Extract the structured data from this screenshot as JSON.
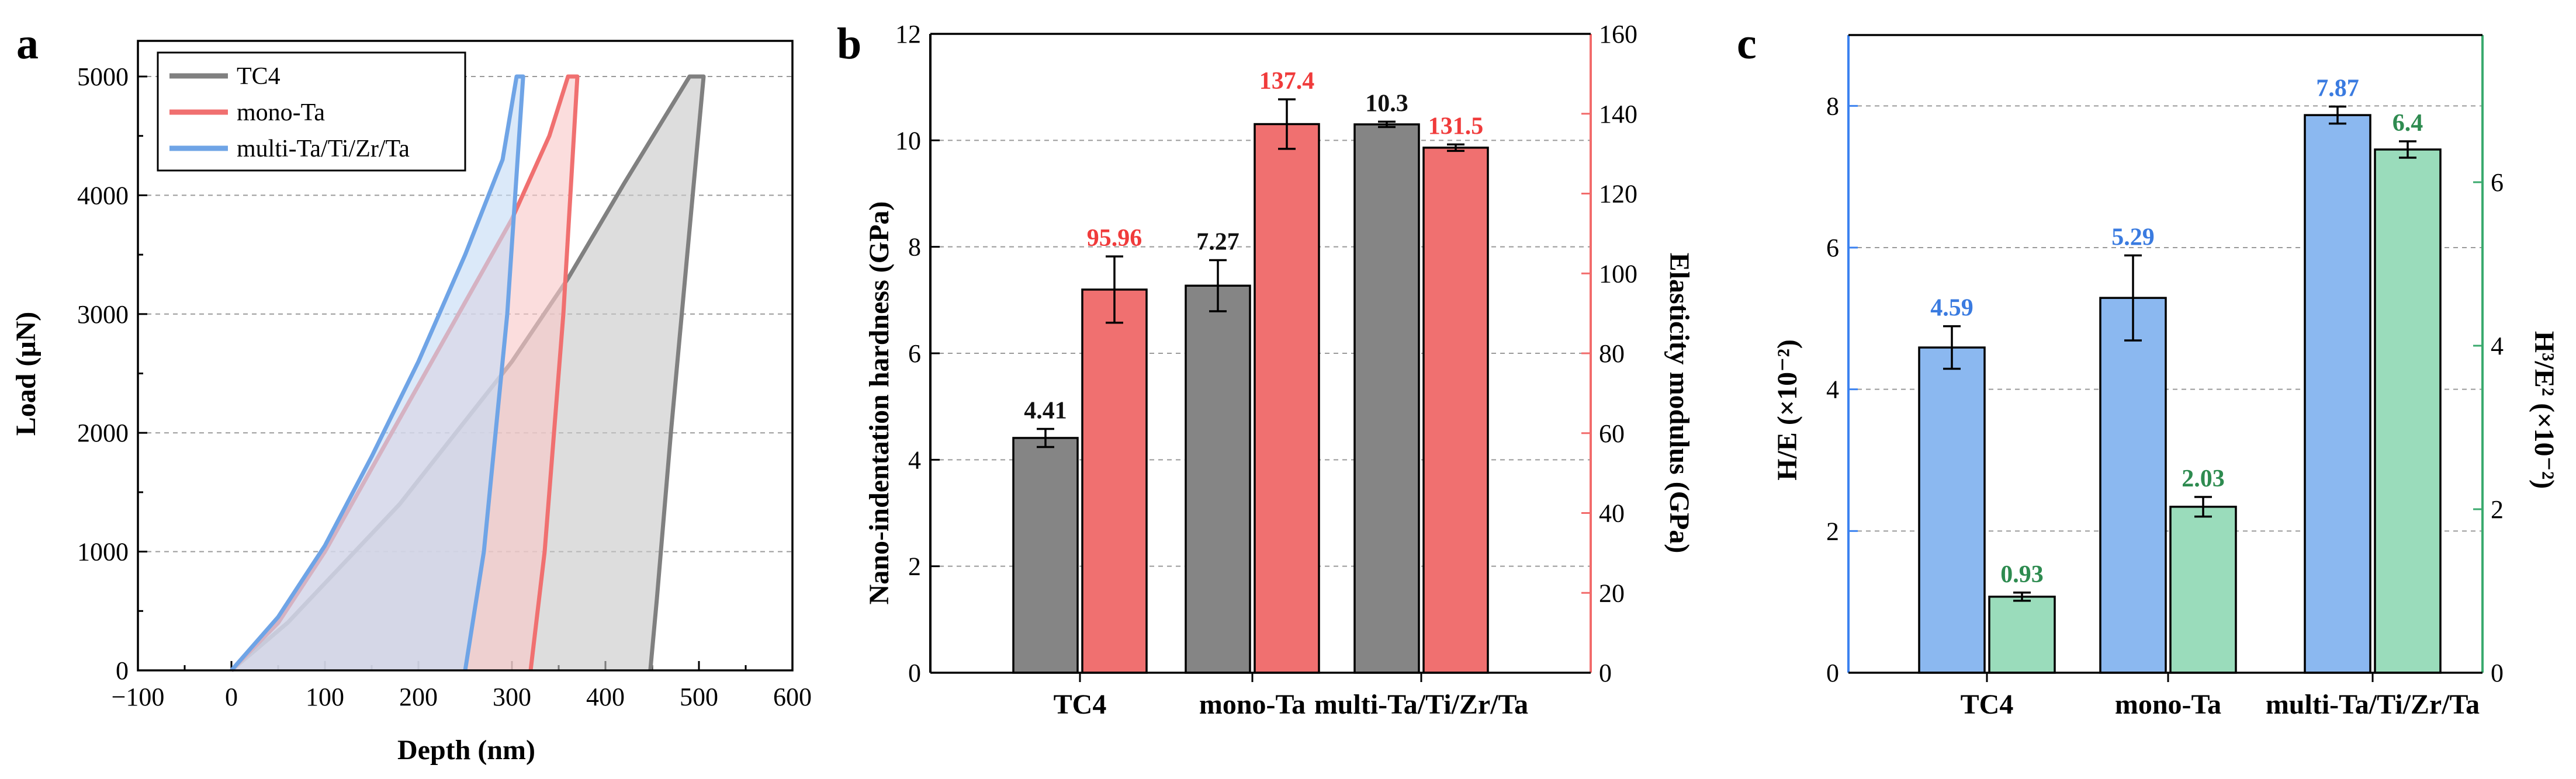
{
  "colors": {
    "tc4": "#808080",
    "mono_ta": "#f07070",
    "multi": "#6fa4e6",
    "bar_gray": "#858585",
    "bar_red": "#f07070",
    "bar_blue": "#8bb8f0",
    "bar_green": "#9adcbb",
    "red_axis": "#f26b6b",
    "blue_axis": "#3b82f0",
    "green_axis": "#3aaa6e",
    "label_red": "#f03b3b",
    "label_blue": "#3a7be0",
    "label_green": "#2e8b50"
  },
  "chart_data": [
    {
      "panel": "a",
      "type": "line",
      "xlabel": "Depth (nm)",
      "ylabel": "Load (μN)",
      "xlim": [
        -100,
        600
      ],
      "ylim": [
        0,
        5300
      ],
      "xticks": [
        "−100",
        "0",
        "100",
        "200",
        "300",
        "400",
        "500",
        "600"
      ],
      "yticks": [
        "0",
        "1000",
        "2000",
        "3000",
        "4000",
        "5000"
      ],
      "legend_location": "top-left",
      "series": [
        {
          "name": "TC4",
          "color_key": "tc4",
          "loading": [
            [
              0,
              0
            ],
            [
              60,
              400
            ],
            [
              120,
              900
            ],
            [
              180,
              1400
            ],
            [
              240,
              2000
            ],
            [
              300,
              2600
            ],
            [
              360,
              3300
            ],
            [
              420,
              4100
            ],
            [
              490,
              5000
            ]
          ],
          "hold": [
            [
              490,
              5000
            ],
            [
              505,
              5000
            ]
          ],
          "unloading": [
            [
              505,
              5000
            ],
            [
              470,
              2000
            ],
            [
              455,
              600
            ],
            [
              448,
              0
            ]
          ]
        },
        {
          "name": "mono-Ta",
          "color_key": "mono_ta",
          "loading": [
            [
              0,
              0
            ],
            [
              50,
              400
            ],
            [
              100,
              1000
            ],
            [
              150,
              1700
            ],
            [
              200,
              2400
            ],
            [
              250,
              3100
            ],
            [
              300,
              3800
            ],
            [
              340,
              4500
            ],
            [
              360,
              5000
            ]
          ],
          "hold": [
            [
              360,
              5000
            ],
            [
              370,
              5000
            ]
          ],
          "unloading": [
            [
              370,
              5000
            ],
            [
              355,
              3000
            ],
            [
              335,
              1000
            ],
            [
              320,
              0
            ]
          ]
        },
        {
          "name": "multi-Ta/Ti/Zr/Ta",
          "color_key": "multi",
          "loading": [
            [
              0,
              0
            ],
            [
              50,
              450
            ],
            [
              100,
              1050
            ],
            [
              150,
              1800
            ],
            [
              200,
              2600
            ],
            [
              250,
              3500
            ],
            [
              290,
              4300
            ],
            [
              305,
              5000
            ]
          ],
          "hold": [
            [
              305,
              5000
            ],
            [
              312,
              5000
            ]
          ],
          "unloading": [
            [
              312,
              5000
            ],
            [
              295,
              3000
            ],
            [
              270,
              1000
            ],
            [
              250,
              0
            ]
          ]
        }
      ]
    },
    {
      "panel": "b",
      "type": "bar",
      "categories": [
        "TC4",
        "mono-Ta",
        "multi-Ta/Ti/Zr/Ta"
      ],
      "ylabel": "Nano-indentation hardness (GPa)",
      "y2label": "Elasticity modulus (GPa)",
      "ylim": [
        0,
        12
      ],
      "y2lim": [
        0,
        160
      ],
      "yticks": [
        "0",
        "2",
        "4",
        "6",
        "8",
        "10",
        "12"
      ],
      "y2ticks": [
        "0",
        "20",
        "40",
        "60",
        "80",
        "100",
        "120",
        "140",
        "160"
      ],
      "series": [
        {
          "name": "Nano-indentation hardness",
          "axis": "left",
          "color_key": "bar_gray",
          "label_color_key": "tc4_label",
          "values": [
            4.41,
            7.27,
            10.3
          ],
          "errors": [
            0.17,
            0.48,
            0.05
          ],
          "labels": [
            "4.41",
            "7.27",
            "10.3"
          ]
        },
        {
          "name": "Elasticity modulus",
          "axis": "right",
          "color_key": "bar_red",
          "values": [
            95.96,
            137.4,
            131.5
          ],
          "errors": [
            8.3,
            6.2,
            0.8
          ],
          "labels": [
            "95.96",
            "137.4",
            "131.5"
          ]
        }
      ]
    },
    {
      "panel": "c",
      "type": "bar",
      "categories": [
        "TC4",
        "mono-Ta",
        "multi-Ta/Ti/Zr/Ta"
      ],
      "ylabel": "H/E (×10⁻²)",
      "y2label": "H³/E² (×10⁻²)",
      "ylim": [
        0,
        9
      ],
      "y2lim": [
        0,
        7.8
      ],
      "yticks": [
        "0",
        "2",
        "4",
        "6",
        "8"
      ],
      "y2ticks": [
        "0",
        "2",
        "4",
        "6"
      ],
      "series": [
        {
          "name": "H/E",
          "axis": "left",
          "color_key": "bar_blue",
          "values": [
            4.59,
            5.29,
            7.87
          ],
          "errors": [
            0.3,
            0.6,
            0.12
          ],
          "labels": [
            "4.59",
            "5.29",
            "7.87"
          ]
        },
        {
          "name": "H³/E²",
          "axis": "right",
          "color_key": "bar_green",
          "values": [
            0.93,
            2.03,
            6.4
          ],
          "errors": [
            0.05,
            0.12,
            0.1
          ],
          "labels": [
            "0.93",
            "2.03",
            "6.4"
          ]
        }
      ]
    }
  ],
  "panel_labels": [
    "a",
    "b",
    "c"
  ]
}
